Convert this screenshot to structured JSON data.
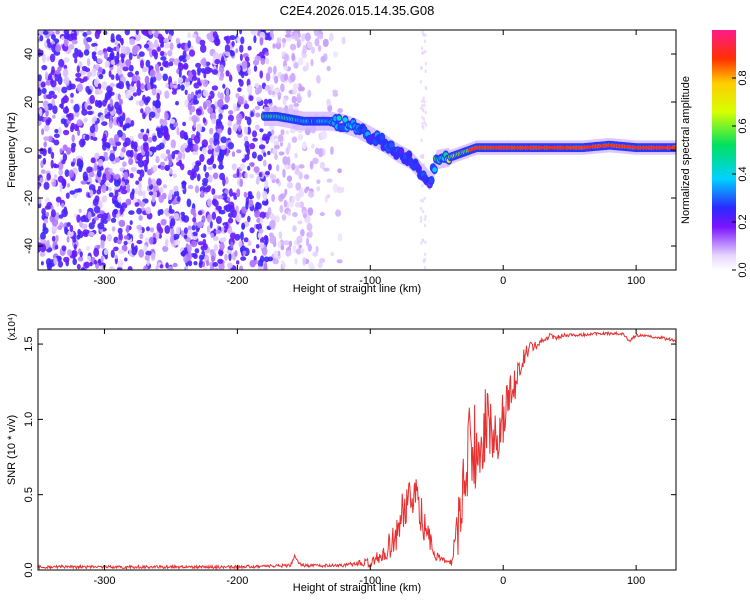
{
  "title": "C2E4.2026.015.14.35.G08",
  "chart_data": [
    {
      "type": "heatmap",
      "name": "spectrogram",
      "xlabel": "Height of straight line (km)",
      "ylabel": "Frequency (Hz)",
      "xlim": [
        -350,
        130
      ],
      "ylim": [
        -50,
        50
      ],
      "xticks": [
        -300,
        -200,
        -100,
        0,
        100
      ],
      "xtick_labels": [
        "-300",
        "-200",
        "-100",
        "0",
        "100"
      ],
      "yticks": [
        -40,
        -20,
        0,
        20,
        40
      ],
      "ytick_labels": [
        "-40",
        "-20",
        "0",
        "20",
        "40"
      ],
      "colorbar": {
        "label": "Normalized spectral amplitude",
        "range": [
          0,
          1
        ],
        "ticks": [
          0.0,
          0.2,
          0.4,
          0.6,
          0.8
        ],
        "tick_labels": [
          "0.0",
          "0.2",
          "0.4",
          "0.6",
          "0.8"
        ]
      },
      "noise_region": {
        "x_from": -350,
        "x_to": -120,
        "dense_until": -175
      },
      "signal_track": {
        "x": [
          -180,
          -170,
          -160,
          -150,
          -140,
          -130,
          -120,
          -110,
          -100,
          -90,
          -80,
          -70,
          -60,
          -55,
          -50,
          -40,
          -30,
          -20,
          -10,
          0,
          20,
          40,
          60,
          80,
          100,
          120,
          130
        ],
        "freq": [
          14,
          14,
          13,
          12,
          12,
          12,
          11,
          9,
          6,
          3,
          -1,
          -4,
          -10,
          -13,
          -4,
          -3,
          -1,
          1,
          1,
          1,
          1,
          1,
          1,
          2,
          1,
          1,
          1
        ],
        "amplitude": [
          0.55,
          0.6,
          0.5,
          0.45,
          0.4,
          0.45,
          0.45,
          0.4,
          0.35,
          0.35,
          0.3,
          0.3,
          0.3,
          0.25,
          0.6,
          0.7,
          0.8,
          0.85,
          0.85,
          0.9,
          0.95,
          0.95,
          0.95,
          0.95,
          0.95,
          0.95,
          0.95
        ]
      }
    },
    {
      "type": "line",
      "name": "snr",
      "xlabel": "Height of straight line (km)",
      "ylabel": "SNR (10 * v/v)",
      "scale_label": "(x10⁴)",
      "xlim": [
        -350,
        130
      ],
      "ylim": [
        0,
        1.6
      ],
      "xticks": [
        -300,
        -200,
        -100,
        0,
        100
      ],
      "xtick_labels": [
        "-300",
        "-200",
        "-100",
        "0",
        "100"
      ],
      "yticks": [
        0.0,
        0.5,
        1.0,
        1.5
      ],
      "ytick_labels": [
        "0.0",
        "0.5",
        "1.0",
        "1.5"
      ],
      "series": [
        {
          "name": "SNR",
          "color": "#e83030",
          "x": [
            -350,
            -300,
            -250,
            -200,
            -160,
            -157,
            -153,
            -150,
            -120,
            -100,
            -90,
            -80,
            -75,
            -70,
            -65,
            -60,
            -55,
            -50,
            -45,
            -40,
            -35,
            -30,
            -25,
            -20,
            -15,
            -10,
            -5,
            0,
            5,
            10,
            15,
            20,
            25,
            30,
            35,
            40,
            50,
            60,
            70,
            80,
            90,
            95,
            100,
            110,
            120,
            130
          ],
          "y": [
            0.02,
            0.02,
            0.02,
            0.02,
            0.03,
            0.09,
            0.04,
            0.03,
            0.03,
            0.05,
            0.12,
            0.22,
            0.38,
            0.55,
            0.48,
            0.32,
            0.18,
            0.1,
            0.06,
            0.05,
            0.2,
            0.55,
            0.85,
            0.8,
            0.95,
            0.92,
            0.88,
            1.0,
            1.15,
            1.25,
            1.4,
            1.48,
            1.5,
            1.52,
            1.55,
            1.55,
            1.56,
            1.56,
            1.57,
            1.57,
            1.57,
            1.52,
            1.56,
            1.55,
            1.54,
            1.52
          ],
          "noise_amplitude": [
            0.01,
            0.01,
            0.01,
            0.01,
            0.01,
            0.01,
            0.01,
            0.01,
            0.01,
            0.03,
            0.06,
            0.12,
            0.18,
            0.15,
            0.15,
            0.12,
            0.08,
            0.04,
            0.02,
            0.02,
            0.18,
            0.25,
            0.3,
            0.3,
            0.28,
            0.25,
            0.2,
            0.18,
            0.15,
            0.1,
            0.06,
            0.04,
            0.03,
            0.02,
            0.02,
            0.02,
            0.01,
            0.01,
            0.01,
            0.01,
            0.01,
            0.01,
            0.01,
            0.01,
            0.01,
            0.01
          ]
        }
      ]
    }
  ]
}
